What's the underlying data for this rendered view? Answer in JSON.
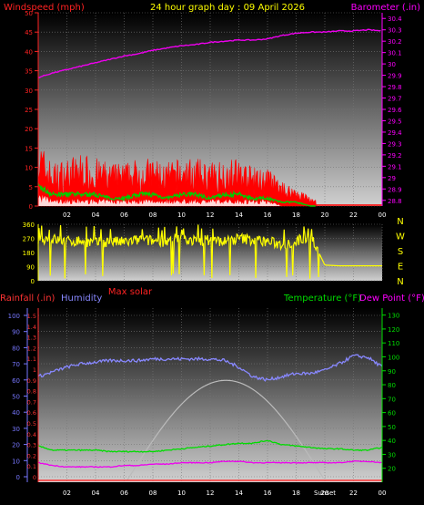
{
  "title": "24 hour graph day : 09 April 2026",
  "colors": {
    "wind": "#ff0000",
    "gust_fill": "#ff0000",
    "wind_avg": "#00cc00",
    "wind_low": "#ffffff",
    "baro": "#ee00ee",
    "dir": "#ffff00",
    "rain": "#ff3333",
    "humidity": "#8888ff",
    "temp": "#00dd00",
    "dew": "#ee00ee",
    "solar": "#bbbbbb",
    "zero": "#ff0000",
    "axis_left_top": "#ff2222",
    "axis_right_top": "#ff00ff",
    "axis_dir": "#ffff00",
    "axis_left_bottom": "#7777ff",
    "axis_right_bottom": "#00dd00"
  },
  "chart_data": [
    {
      "type": "line",
      "name": "wind-baro",
      "left_label": "Windspeed (mph)",
      "right_label": "Barometer (.in)",
      "x_ticks": [
        "02",
        "04",
        "06",
        "08",
        "10",
        "12",
        "14",
        "16",
        "18",
        "20",
        "22",
        "00"
      ],
      "y_left_ticks": [
        0,
        5,
        10,
        15,
        20,
        25,
        30,
        35,
        40,
        45,
        50
      ],
      "y_left_range": [
        0,
        50
      ],
      "y_right_ticks": [
        "28.8",
        "28.9",
        "29",
        "29.1",
        "29.2",
        "29.3",
        "29.4",
        "29.5",
        "29.6",
        "29.7",
        "29.8",
        "29.9",
        "30",
        "30.1",
        "30.2",
        "30.3",
        "30.4"
      ],
      "y_right_range": [
        28.75,
        30.45
      ],
      "hours": [
        0,
        1,
        2,
        3,
        4,
        5,
        6,
        7,
        8,
        9,
        10,
        11,
        12,
        13,
        14,
        15,
        16,
        17,
        18,
        19,
        20,
        21,
        22,
        23,
        24
      ],
      "barometer": [
        29.88,
        29.92,
        29.95,
        29.98,
        30.01,
        30.04,
        30.07,
        30.09,
        30.12,
        30.14,
        30.16,
        30.17,
        30.19,
        30.2,
        30.21,
        30.21,
        30.22,
        30.25,
        30.27,
        30.28,
        30.28,
        30.29,
        30.29,
        30.3,
        30.29
      ],
      "gust": [
        14,
        9,
        10,
        11,
        10,
        9,
        9,
        10,
        10,
        9,
        10,
        10,
        9,
        10,
        10,
        8,
        8,
        5,
        4,
        2,
        0,
        0,
        0,
        0,
        0
      ],
      "wind_avg": [
        5,
        3,
        3,
        3,
        3,
        2,
        2,
        3,
        3,
        2,
        3,
        3,
        2,
        3,
        3,
        2,
        2,
        1,
        1,
        0,
        0,
        0,
        0,
        0,
        0
      ],
      "wind_low": [
        2,
        1,
        1,
        1,
        1,
        1,
        1,
        1,
        1,
        1,
        1,
        1,
        1,
        1,
        1,
        1,
        1,
        0,
        0,
        0,
        0,
        0,
        0,
        0,
        0
      ]
    },
    {
      "type": "scatter",
      "name": "wind-direction",
      "y_ticks": [
        0,
        90,
        180,
        270,
        360
      ],
      "y_range": [
        0,
        360
      ],
      "compass": [
        "N",
        "W",
        "S",
        "E",
        "N"
      ],
      "hours": [
        0,
        1,
        2,
        3,
        4,
        5,
        6,
        7,
        8,
        9,
        10,
        11,
        12,
        13,
        14,
        15,
        16,
        17,
        18,
        19,
        20,
        21,
        22,
        23,
        24
      ],
      "direction": [
        270,
        265,
        250,
        255,
        240,
        250,
        245,
        260,
        255,
        250,
        265,
        255,
        260,
        250,
        270,
        260,
        250,
        230,
        250,
        290,
        100,
        95,
        95,
        95,
        95
      ],
      "label": "Max solar"
    },
    {
      "type": "line",
      "name": "rain-hum-temp",
      "left_label_1": "Rainfall (.in)",
      "left_label_2": "Humidity",
      "right_label_1": "Temperature (°F)",
      "right_label_2": "Dew Point (°F)",
      "x_ticks": [
        "02",
        "04",
        "06",
        "08",
        "10",
        "12",
        "14",
        "16",
        "18",
        "20",
        "22",
        "00"
      ],
      "hum_ticks": [
        0,
        10,
        20,
        30,
        40,
        50,
        60,
        70,
        80,
        90,
        100
      ],
      "rain_ticks": [
        "0",
        "0.1",
        "0.2",
        "0.3",
        "0.4",
        "0.5",
        "0.6",
        "0.7",
        "0.8",
        "0.9",
        "1",
        "1.1",
        "1.2",
        "1.3",
        "1.4",
        "1.5"
      ],
      "temp_ticks": [
        20,
        30,
        40,
        50,
        60,
        70,
        80,
        90,
        100,
        110,
        120,
        130
      ],
      "temp_range": [
        10,
        135
      ],
      "hours": [
        0,
        1,
        2,
        3,
        4,
        5,
        6,
        7,
        8,
        9,
        10,
        11,
        12,
        13,
        14,
        15,
        16,
        17,
        18,
        19,
        20,
        21,
        22,
        23,
        24
      ],
      "humidity": [
        62,
        65,
        68,
        70,
        71,
        72,
        72,
        72,
        73,
        73,
        73,
        73,
        73,
        72,
        68,
        62,
        60,
        62,
        64,
        64,
        66,
        70,
        75,
        74,
        68
      ],
      "temperature": [
        36,
        33,
        33,
        33,
        33,
        32,
        32,
        32,
        32,
        33,
        34,
        35,
        36,
        37,
        38,
        38,
        40,
        37,
        36,
        35,
        34,
        34,
        33,
        33,
        35
      ],
      "dewpoint": [
        24,
        22,
        21,
        21,
        21,
        21,
        22,
        22,
        23,
        23,
        24,
        24,
        24,
        25,
        25,
        24,
        24,
        24,
        24,
        24,
        24,
        24,
        25,
        25,
        24
      ],
      "solar_peak_pct": 0.62,
      "sunrise_hour": 6.2,
      "sunset_hour": 20.0,
      "sunset_label": "Sunset"
    }
  ]
}
